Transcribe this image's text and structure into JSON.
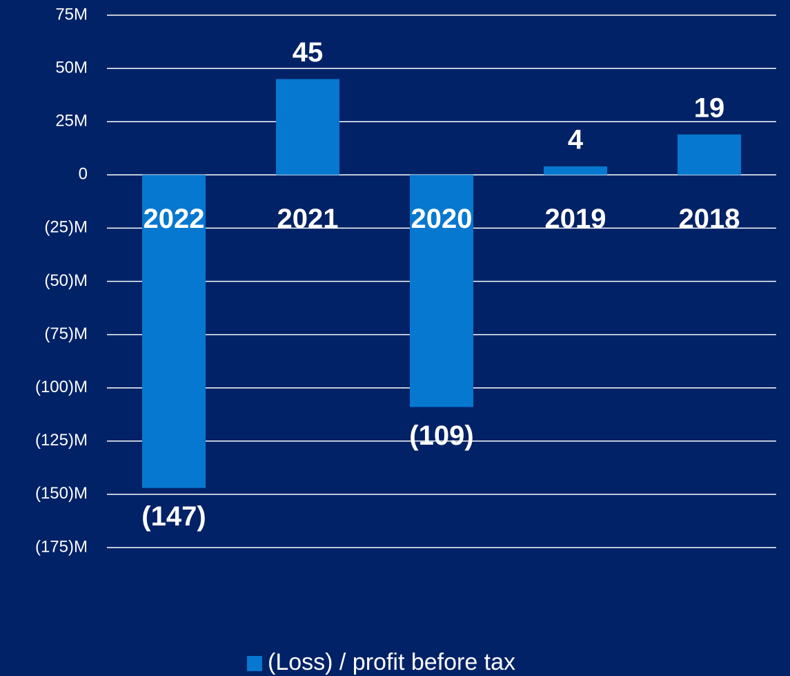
{
  "chart_data": {
    "type": "bar",
    "categories": [
      "2022",
      "2021",
      "2020",
      "2019",
      "2018"
    ],
    "series": [
      {
        "name": "(Loss) / profit before tax",
        "color": "#0778d0",
        "values": [
          -147000000,
          45000000,
          -109000000,
          4000000,
          19000000
        ],
        "value_labels": [
          "(147)",
          "45",
          "(109)",
          "4",
          "19"
        ]
      }
    ],
    "ylim": [
      -175000000,
      75000000
    ],
    "yticks": [
      {
        "value": 75000000,
        "label": "75M"
      },
      {
        "value": 50000000,
        "label": "50M"
      },
      {
        "value": 25000000,
        "label": "25M"
      },
      0,
      {
        "value": -25000000,
        "label": "(25)M"
      },
      {
        "value": -50000000,
        "label": "(50)M"
      },
      {
        "value": -75000000,
        "label": "(75)M"
      },
      {
        "value": -100000000,
        "label": "(100)M"
      },
      {
        "value": -125000000,
        "label": "(125)M"
      },
      {
        "value": -150000000,
        "label": "(150)M"
      },
      {
        "value": -175000000,
        "label": "(175)M"
      }
    ],
    "grid": true,
    "legend": "bottom"
  }
}
